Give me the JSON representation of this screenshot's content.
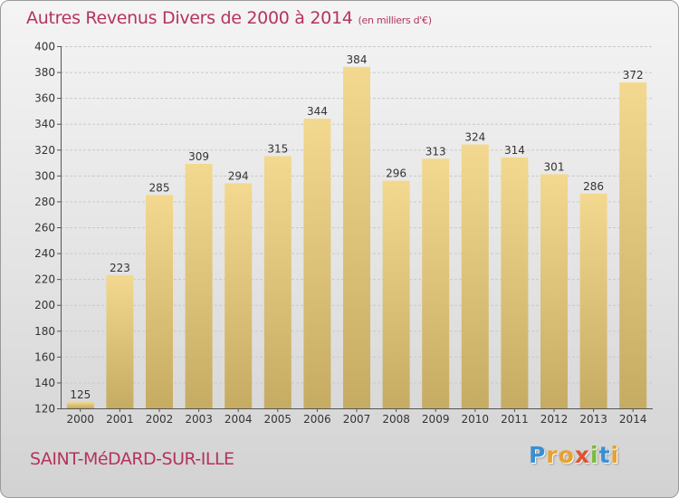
{
  "title": "Autres Revenus Divers de 2000 à 2014",
  "title_unit": "(en milliers d'€)",
  "commune": "SAINT-MéDARD-SUR-ILLE",
  "logo": [
    "P",
    "r",
    "o",
    "x",
    "i",
    "t",
    "i"
  ],
  "colors": {
    "title": "#b5345c",
    "bar_top": "#f3d98f",
    "bar_bottom": "#c6ab62",
    "logo": [
      "#3b8fd1",
      "#e8a22a",
      "#e8a22a",
      "#e0522e",
      "#7bb93a",
      "#3b8fd1",
      "#e8a22a"
    ]
  },
  "chart_data": {
    "type": "bar",
    "categories": [
      "2000",
      "2001",
      "2002",
      "2003",
      "2004",
      "2005",
      "2006",
      "2007",
      "2008",
      "2009",
      "2010",
      "2011",
      "2012",
      "2013",
      "2014"
    ],
    "values": [
      125,
      223,
      285,
      309,
      294,
      315,
      344,
      384,
      296,
      313,
      324,
      314,
      301,
      286,
      372
    ],
    "yticks": [
      120,
      140,
      160,
      180,
      200,
      220,
      240,
      260,
      280,
      300,
      320,
      340,
      360,
      380,
      400
    ],
    "ylim": [
      120,
      400
    ],
    "grid": true
  }
}
